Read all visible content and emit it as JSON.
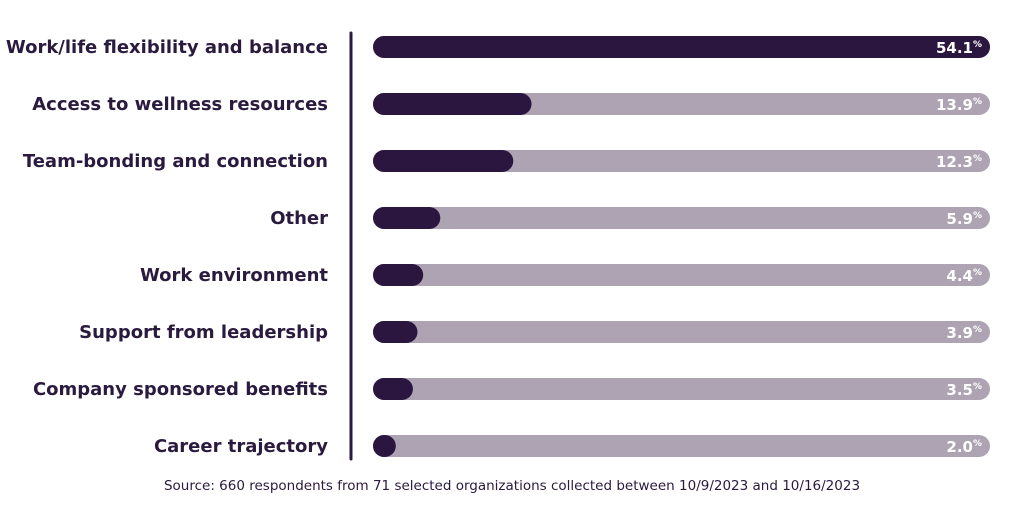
{
  "chart_data": {
    "type": "bar",
    "orientation": "horizontal",
    "categories": [
      "Work/life flexibility and balance",
      "Access to wellness resources",
      "Team-bonding and connection",
      "Other",
      "Work environment",
      "Support from leadership",
      "Company sponsored benefits",
      "Career trajectory"
    ],
    "values": [
      54.1,
      13.9,
      12.3,
      5.9,
      4.4,
      3.9,
      3.5,
      2.0
    ],
    "value_labels": [
      "54.1",
      "13.9",
      "12.3",
      "5.9",
      "4.4",
      "3.9",
      "3.5",
      "2.0"
    ],
    "unit": "%",
    "xlim": [
      0,
      54.1
    ],
    "grid": false,
    "legend": "none",
    "colors": {
      "bar": "#2b1640",
      "track": "#ada3b3",
      "label": "#2a1a3e",
      "value_text": "#ffffff"
    }
  },
  "source": "Source: 660 respondents from 71 selected organizations collected between 10/9/2023 and 10/16/2023"
}
